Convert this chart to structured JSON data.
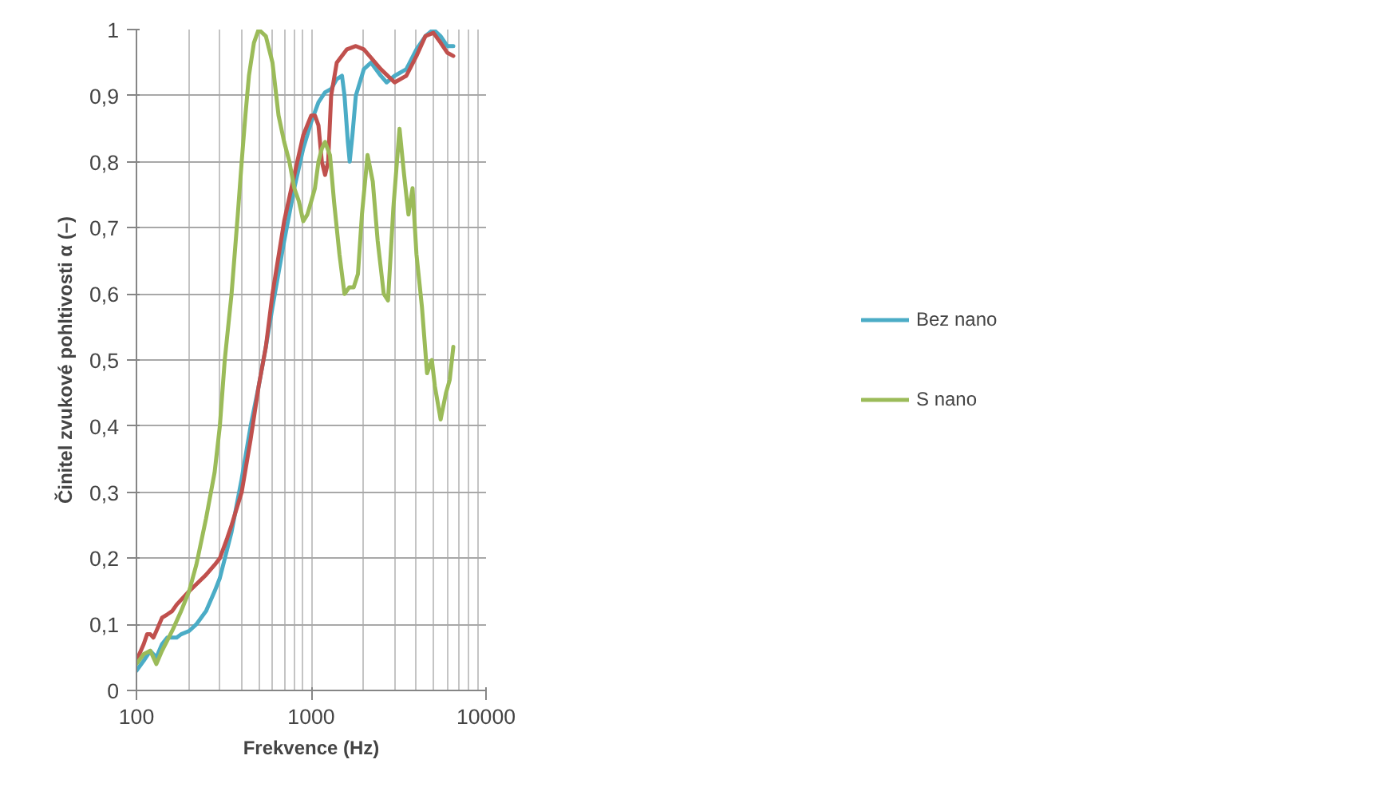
{
  "chart_data": {
    "type": "line",
    "xlabel": "Frekvence (Hz)",
    "ylabel": "Činitel zvukové pohltivosti α (–)",
    "log": "x",
    "grid": true,
    "legend": "right",
    "line_style": "solid",
    "marker": "none",
    "xlim": [
      100,
      10000
    ],
    "xticks": [
      100,
      1000,
      10000
    ],
    "ylim": [
      0,
      1
    ],
    "yticks": [
      0,
      {
        "value": 0.1,
        "label": "0,1"
      },
      {
        "value": 0.2,
        "label": "0,2"
      },
      {
        "value": 0.3,
        "label": "0,3"
      },
      {
        "value": 0.4,
        "label": "0,4"
      },
      {
        "value": 0.5,
        "label": "0,5"
      },
      {
        "value": 0.6,
        "label": "0,6"
      },
      {
        "value": 0.7,
        "label": "0,7"
      },
      {
        "value": 0.8,
        "label": "0,8"
      },
      {
        "value": 0.9,
        "label": "0,9"
      },
      1
    ],
    "series": [
      {
        "name": "Bez nano",
        "color": "#4bacc6",
        "x": [
          100,
          110,
          120,
          130,
          140,
          150,
          170,
          180,
          200,
          220,
          250,
          280,
          300,
          350,
          400,
          450,
          500,
          550,
          600,
          700,
          800,
          900,
          1000,
          1100,
          1200,
          1300,
          1400,
          1500,
          1550,
          1620,
          1660,
          1720,
          1800,
          2000,
          2200,
          2500,
          2700,
          3000,
          3500,
          4000,
          4500,
          5000,
          5500,
          6000,
          6500
        ],
        "values": [
          0.03,
          0.045,
          0.06,
          0.05,
          0.07,
          0.08,
          0.08,
          0.085,
          0.09,
          0.1,
          0.12,
          0.15,
          0.17,
          0.24,
          0.32,
          0.4,
          0.46,
          0.52,
          0.58,
          0.68,
          0.76,
          0.82,
          0.86,
          0.89,
          0.905,
          0.91,
          0.925,
          0.93,
          0.9,
          0.83,
          0.8,
          0.84,
          0.9,
          0.94,
          0.95,
          0.93,
          0.92,
          0.93,
          0.94,
          0.97,
          0.99,
          1.0,
          0.99,
          0.975,
          0.975
        ]
      },
      {
        "color": "#c0504d",
        "x": [
          100,
          110,
          115,
          120,
          125,
          130,
          140,
          150,
          160,
          170,
          200,
          250,
          280,
          300,
          330,
          350,
          400,
          450,
          500,
          550,
          600,
          700,
          800,
          900,
          1000,
          1050,
          1100,
          1150,
          1200,
          1250,
          1300,
          1400,
          1600,
          1800,
          2000,
          2500,
          3000,
          3500,
          4000,
          4500,
          5000,
          5500,
          6000,
          6500
        ],
        "values": [
          0.045,
          0.07,
          0.085,
          0.085,
          0.08,
          0.09,
          0.11,
          0.115,
          0.12,
          0.13,
          0.15,
          0.175,
          0.19,
          0.2,
          0.23,
          0.25,
          0.3,
          0.38,
          0.46,
          0.52,
          0.6,
          0.71,
          0.78,
          0.84,
          0.87,
          0.87,
          0.855,
          0.8,
          0.78,
          0.8,
          0.9,
          0.95,
          0.97,
          0.975,
          0.97,
          0.94,
          0.92,
          0.93,
          0.96,
          0.99,
          0.995,
          0.98,
          0.965,
          0.96
        ]
      },
      {
        "name": "S nano",
        "color": "#9bbb59",
        "x": [
          100,
          110,
          120,
          130,
          140,
          160,
          180,
          200,
          220,
          250,
          280,
          300,
          320,
          350,
          380,
          400,
          420,
          440,
          470,
          500,
          550,
          600,
          650,
          700,
          750,
          800,
          850,
          900,
          950,
          1000,
          1050,
          1100,
          1150,
          1200,
          1280,
          1350,
          1450,
          1550,
          1650,
          1750,
          1850,
          1950,
          2100,
          2250,
          2400,
          2600,
          2750,
          2950,
          3200,
          3400,
          3600,
          3800,
          4000,
          4300,
          4600,
          4900,
          5100,
          5500,
          5900,
          6200,
          6500
        ],
        "values": [
          0.04,
          0.055,
          0.06,
          0.04,
          0.06,
          0.09,
          0.12,
          0.15,
          0.19,
          0.26,
          0.33,
          0.4,
          0.5,
          0.6,
          0.72,
          0.8,
          0.87,
          0.93,
          0.98,
          1.0,
          0.99,
          0.95,
          0.87,
          0.83,
          0.8,
          0.76,
          0.74,
          0.71,
          0.72,
          0.74,
          0.76,
          0.8,
          0.82,
          0.83,
          0.81,
          0.74,
          0.66,
          0.6,
          0.61,
          0.61,
          0.63,
          0.72,
          0.81,
          0.77,
          0.68,
          0.6,
          0.59,
          0.73,
          0.85,
          0.78,
          0.72,
          0.76,
          0.66,
          0.58,
          0.48,
          0.5,
          0.46,
          0.41,
          0.45,
          0.47,
          0.52
        ]
      }
    ]
  }
}
